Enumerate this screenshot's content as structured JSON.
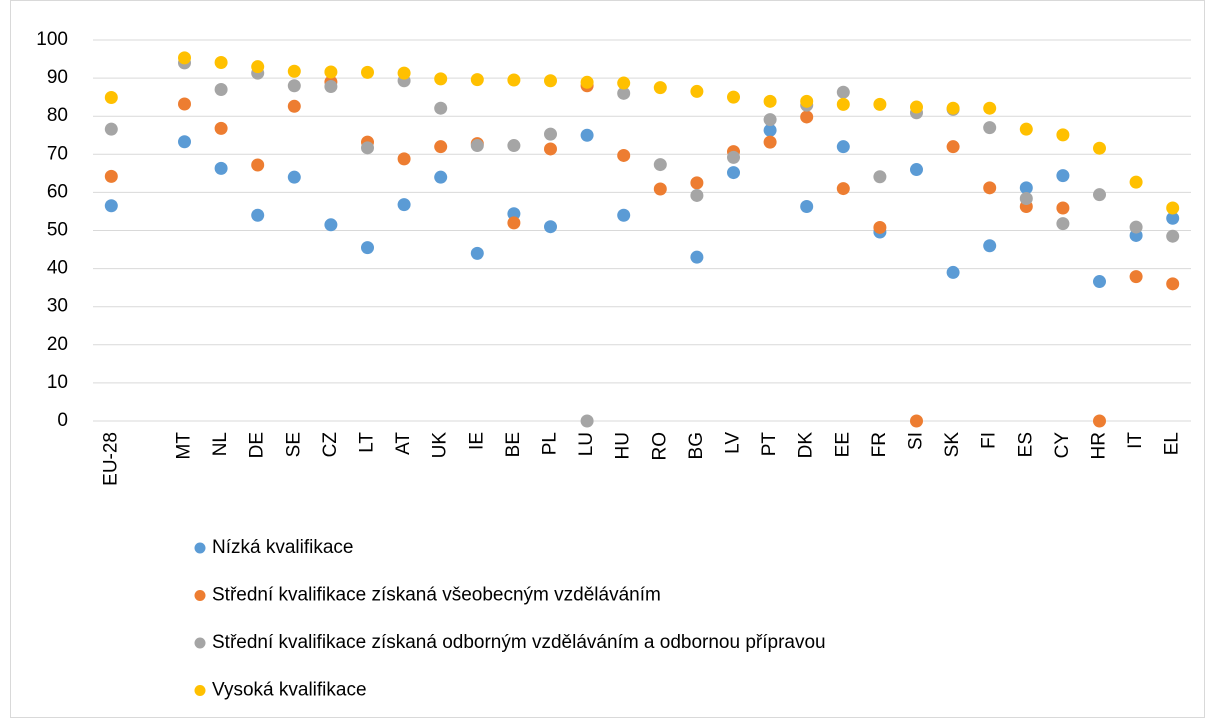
{
  "chart_data": {
    "type": "dot",
    "categories": [
      "EU-28",
      null,
      "MT",
      "NL",
      "DE",
      "SE",
      "CZ",
      "LT",
      "AT",
      "UK",
      "IE",
      "BE",
      "PL",
      "LU",
      "HU",
      "RO",
      "BG",
      "LV",
      "PT",
      "DK",
      "EE",
      "FR",
      "SI",
      "SK",
      "FI",
      "ES",
      "CY",
      "HR",
      "IT",
      "EL"
    ],
    "series": [
      {
        "name": "Nízká kvalifikace",
        "color": "#5b9bd5",
        "values": [
          56.5,
          null,
          73.3,
          66.3,
          54,
          64,
          51.5,
          45.5,
          56.8,
          64,
          44,
          54.4,
          51,
          75,
          54,
          null,
          43,
          65.2,
          76.3,
          56.3,
          72,
          49.6,
          66,
          39,
          46,
          61.2,
          64.4,
          36.6,
          48.7,
          53.2
        ]
      },
      {
        "name": "Střední kvalifikace získaná všeobecným vzděláváním",
        "color": "#ed7d31",
        "values": [
          64.2,
          null,
          83.2,
          76.8,
          67.2,
          82.6,
          89,
          73.2,
          68.8,
          72,
          72.8,
          52,
          71.4,
          88,
          69.7,
          60.9,
          62.5,
          70.7,
          73.2,
          79.8,
          61,
          50.8,
          0,
          72,
          61.2,
          56.3,
          55.9,
          0,
          37.9,
          36
        ]
      },
      {
        "name": "Střední kvalifikace získaná odborným vzděláváním a odbornou přípravou",
        "color": "#a5a5a5",
        "values": [
          76.6,
          null,
          94,
          87,
          91.3,
          88,
          87.8,
          71.7,
          89.3,
          82.1,
          72.3,
          72.3,
          75.3,
          0,
          86,
          67.3,
          59.2,
          69.2,
          79.1,
          82.9,
          86.3,
          64.1,
          80.9,
          81.8,
          77,
          58.4,
          51.8,
          59.4,
          50.9,
          48.5
        ]
      },
      {
        "name": "Vysoká kvalifikace",
        "color": "#ffc000",
        "values": [
          84.9,
          null,
          95.3,
          94.1,
          93,
          91.8,
          91.6,
          91.5,
          91.3,
          89.8,
          89.6,
          89.5,
          89.3,
          88.9,
          88.7,
          87.5,
          86.5,
          85,
          83.9,
          83.9,
          83.1,
          83.1,
          82.4,
          82.1,
          82.1,
          76.6,
          75.1,
          71.6,
          62.7,
          55.9
        ]
      }
    ],
    "ylim": [
      0,
      100
    ],
    "yticks": [
      0,
      10,
      20,
      30,
      40,
      50,
      60,
      70,
      80,
      90,
      100
    ],
    "grid": true,
    "legend": "bottom"
  }
}
